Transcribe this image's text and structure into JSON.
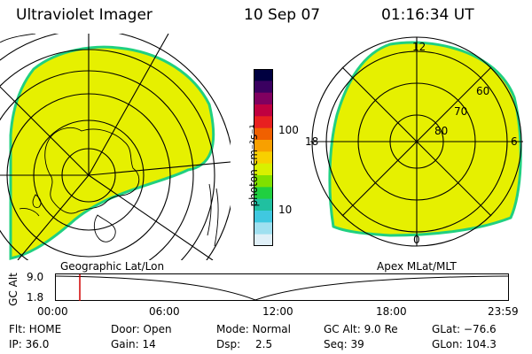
{
  "header": {
    "instrument": "Ultraviolet Imager",
    "date": "10 Sep 07",
    "time": "01:16:34 UT"
  },
  "colorbar": {
    "unit_label": "photon cm⁻²s⁻¹",
    "ticks": [
      "100",
      "10"
    ],
    "colors": [
      "#000040",
      "#3a0060",
      "#800060",
      "#c00040",
      "#e82020",
      "#f06000",
      "#f8a000",
      "#f8d000",
      "#d8f000",
      "#80e000",
      "#20d040",
      "#20c0a0",
      "#40c8e0",
      "#a0e0f0",
      "#e0f0f8"
    ]
  },
  "left_panel": {
    "caption": "Geographic Lat/Lon",
    "aurora_fill": "#e6f000",
    "aurora_edge": "#20d080"
  },
  "right_panel": {
    "caption": "Apex MLat/MLT",
    "mlt_labels": {
      "top": "12",
      "bottom": "0",
      "left": "18",
      "right": "6"
    },
    "lat_labels": [
      "60",
      "70",
      "80"
    ],
    "aurora_fill": "#e6f000",
    "aurora_edge": "#20d080"
  },
  "altitude_strip": {
    "axis_label": "GC Alt",
    "y_ticks": [
      "9.0",
      "1.8"
    ],
    "x_ticks": [
      "00:00",
      "06:00",
      "12:00",
      "18:00",
      "23:59"
    ],
    "marker_time": "01:16",
    "marker_color": "#d00000"
  },
  "info": {
    "flt": "Flt: HOME",
    "ip": "IP: 36.0",
    "door": "Door: Open",
    "gain": "Gain: 14",
    "mode": "Mode: Normal",
    "dsp_label": "Dsp:",
    "dsp_value": "2.5",
    "gcalt": "GC Alt: 9.0 Re",
    "seq": "Seq: 39",
    "glat": "GLat: −76.6",
    "glon": "GLon: 104.3"
  }
}
